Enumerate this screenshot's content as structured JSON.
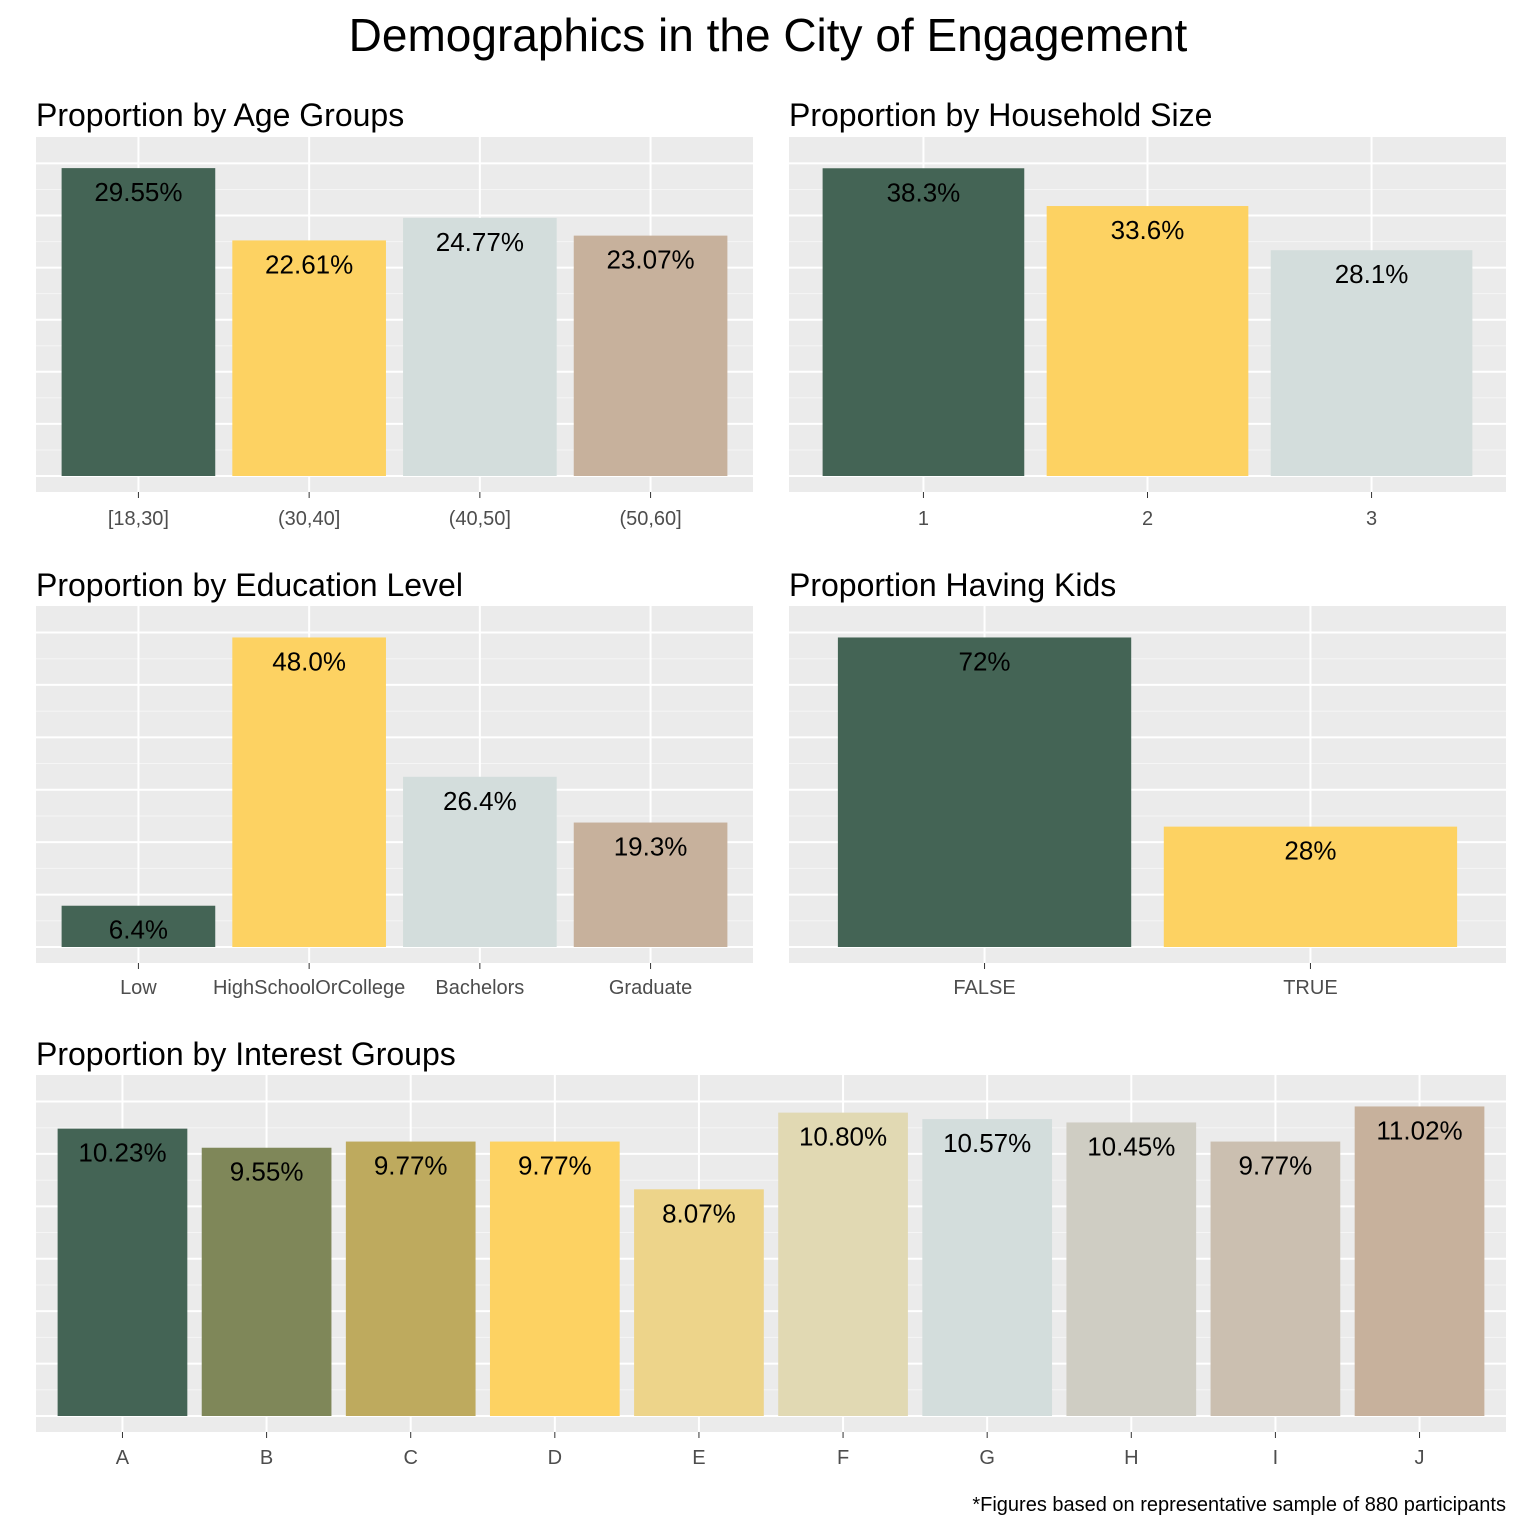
{
  "title": "Demographics in the City of Engagement",
  "caption": "*Figures based on representative sample of 880 participants",
  "chart_data": [
    {
      "type": "bar",
      "title": "Proportion by Age Groups",
      "categories": [
        "[18,30]",
        "(30,40]",
        "(40,50]",
        "(50,60]"
      ],
      "values": [
        29.55,
        22.61,
        24.77,
        23.07
      ],
      "labels": [
        "29.55%",
        "22.61%",
        "24.77%",
        "23.07%"
      ],
      "colors": [
        "#446455",
        "#FDD262",
        "#D3DDDC",
        "#C7B19C"
      ],
      "xlabel": "",
      "ylabel": "",
      "ylim": [
        0,
        31
      ]
    },
    {
      "type": "bar",
      "title": "Proportion by Household Size",
      "categories": [
        "1",
        "2",
        "3"
      ],
      "values": [
        38.3,
        33.6,
        28.1
      ],
      "labels": [
        "38.3%",
        "33.6%",
        "28.1%"
      ],
      "colors": [
        "#446455",
        "#FDD262",
        "#D3DDDC"
      ],
      "xlabel": "",
      "ylabel": "",
      "ylim": [
        0,
        40.2
      ]
    },
    {
      "type": "bar",
      "title": "Proportion by Education Level",
      "categories": [
        "Low",
        "HighSchoolOrCollege",
        "Bachelors",
        "Graduate"
      ],
      "values": [
        6.4,
        48.0,
        26.4,
        19.3
      ],
      "labels": [
        "6.4%",
        "48.0%",
        "26.4%",
        "19.3%"
      ],
      "colors": [
        "#446455",
        "#FDD262",
        "#D3DDDC",
        "#C7B19C"
      ],
      "xlabel": "",
      "ylabel": "",
      "ylim": [
        0,
        50.4
      ]
    },
    {
      "type": "bar",
      "title": "Proportion Having Kids",
      "categories": [
        "FALSE",
        "TRUE"
      ],
      "values": [
        72,
        28
      ],
      "labels": [
        "72%",
        "28%"
      ],
      "colors": [
        "#446455",
        "#FDD262"
      ],
      "xlabel": "",
      "ylabel": "",
      "ylim": [
        0,
        75.6
      ]
    },
    {
      "type": "bar",
      "title": "Proportion by Interest Groups",
      "categories": [
        "A",
        "B",
        "C",
        "D",
        "E",
        "F",
        "G",
        "H",
        "I",
        "J"
      ],
      "values": [
        10.23,
        9.55,
        9.77,
        9.77,
        8.07,
        10.8,
        10.57,
        10.45,
        9.77,
        11.02
      ],
      "labels": [
        "10.23%",
        "9.55%",
        "9.77%",
        "9.77%",
        "8.07%",
        "10.80%",
        "10.57%",
        "10.45%",
        "9.77%",
        "11.02%"
      ],
      "colors": [
        "#446455",
        "#7F8759",
        "#BEAA5E",
        "#FDD262",
        "#EDD48A",
        "#E1D9B3",
        "#D3DDDC",
        "#CFCDC3",
        "#CBBFB0",
        "#C7B19C"
      ],
      "xlabel": "",
      "ylabel": "",
      "ylim": [
        0,
        11.57
      ]
    }
  ]
}
